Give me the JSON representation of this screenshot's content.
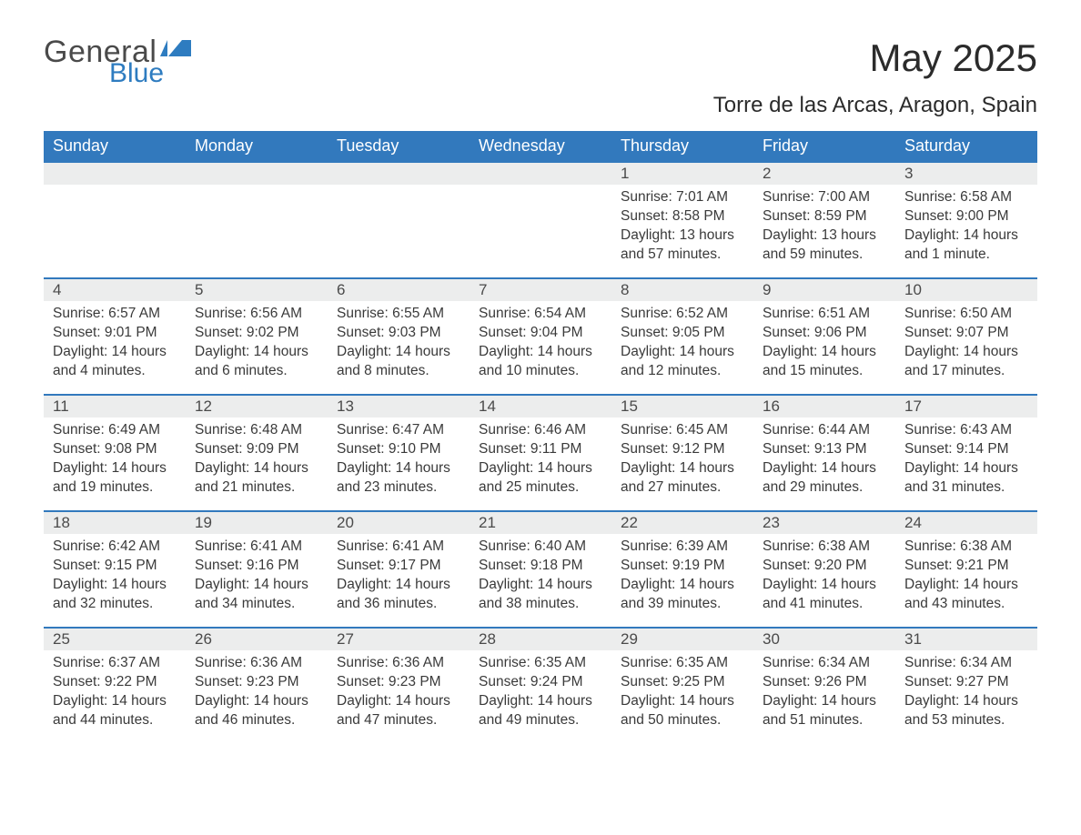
{
  "brand": {
    "general": "General",
    "blue": "Blue",
    "flag_color": "#2e7cc0"
  },
  "title": "May 2025",
  "location": "Torre de las Arcas, Aragon, Spain",
  "colors": {
    "header_bg": "#3279bd",
    "header_text": "#ffffff",
    "band_bg": "#eceded",
    "row_border": "#3279bd",
    "body_text": "#3a3a3a",
    "page_bg": "#ffffff"
  },
  "fonts": {
    "month_title_pt": 42,
    "location_pt": 24,
    "weekday_pt": 18,
    "daynum_pt": 17,
    "data_pt": 15.5
  },
  "weekdays": [
    "Sunday",
    "Monday",
    "Tuesday",
    "Wednesday",
    "Thursday",
    "Friday",
    "Saturday"
  ],
  "weeks": [
    [
      null,
      null,
      null,
      null,
      {
        "day": "1",
        "sunrise": "Sunrise: 7:01 AM",
        "sunset": "Sunset: 8:58 PM",
        "daylight": "Daylight: 13 hours and 57 minutes."
      },
      {
        "day": "2",
        "sunrise": "Sunrise: 7:00 AM",
        "sunset": "Sunset: 8:59 PM",
        "daylight": "Daylight: 13 hours and 59 minutes."
      },
      {
        "day": "3",
        "sunrise": "Sunrise: 6:58 AM",
        "sunset": "Sunset: 9:00 PM",
        "daylight": "Daylight: 14 hours and 1 minute."
      }
    ],
    [
      {
        "day": "4",
        "sunrise": "Sunrise: 6:57 AM",
        "sunset": "Sunset: 9:01 PM",
        "daylight": "Daylight: 14 hours and 4 minutes."
      },
      {
        "day": "5",
        "sunrise": "Sunrise: 6:56 AM",
        "sunset": "Sunset: 9:02 PM",
        "daylight": "Daylight: 14 hours and 6 minutes."
      },
      {
        "day": "6",
        "sunrise": "Sunrise: 6:55 AM",
        "sunset": "Sunset: 9:03 PM",
        "daylight": "Daylight: 14 hours and 8 minutes."
      },
      {
        "day": "7",
        "sunrise": "Sunrise: 6:54 AM",
        "sunset": "Sunset: 9:04 PM",
        "daylight": "Daylight: 14 hours and 10 minutes."
      },
      {
        "day": "8",
        "sunrise": "Sunrise: 6:52 AM",
        "sunset": "Sunset: 9:05 PM",
        "daylight": "Daylight: 14 hours and 12 minutes."
      },
      {
        "day": "9",
        "sunrise": "Sunrise: 6:51 AM",
        "sunset": "Sunset: 9:06 PM",
        "daylight": "Daylight: 14 hours and 15 minutes."
      },
      {
        "day": "10",
        "sunrise": "Sunrise: 6:50 AM",
        "sunset": "Sunset: 9:07 PM",
        "daylight": "Daylight: 14 hours and 17 minutes."
      }
    ],
    [
      {
        "day": "11",
        "sunrise": "Sunrise: 6:49 AM",
        "sunset": "Sunset: 9:08 PM",
        "daylight": "Daylight: 14 hours and 19 minutes."
      },
      {
        "day": "12",
        "sunrise": "Sunrise: 6:48 AM",
        "sunset": "Sunset: 9:09 PM",
        "daylight": "Daylight: 14 hours and 21 minutes."
      },
      {
        "day": "13",
        "sunrise": "Sunrise: 6:47 AM",
        "sunset": "Sunset: 9:10 PM",
        "daylight": "Daylight: 14 hours and 23 minutes."
      },
      {
        "day": "14",
        "sunrise": "Sunrise: 6:46 AM",
        "sunset": "Sunset: 9:11 PM",
        "daylight": "Daylight: 14 hours and 25 minutes."
      },
      {
        "day": "15",
        "sunrise": "Sunrise: 6:45 AM",
        "sunset": "Sunset: 9:12 PM",
        "daylight": "Daylight: 14 hours and 27 minutes."
      },
      {
        "day": "16",
        "sunrise": "Sunrise: 6:44 AM",
        "sunset": "Sunset: 9:13 PM",
        "daylight": "Daylight: 14 hours and 29 minutes."
      },
      {
        "day": "17",
        "sunrise": "Sunrise: 6:43 AM",
        "sunset": "Sunset: 9:14 PM",
        "daylight": "Daylight: 14 hours and 31 minutes."
      }
    ],
    [
      {
        "day": "18",
        "sunrise": "Sunrise: 6:42 AM",
        "sunset": "Sunset: 9:15 PM",
        "daylight": "Daylight: 14 hours and 32 minutes."
      },
      {
        "day": "19",
        "sunrise": "Sunrise: 6:41 AM",
        "sunset": "Sunset: 9:16 PM",
        "daylight": "Daylight: 14 hours and 34 minutes."
      },
      {
        "day": "20",
        "sunrise": "Sunrise: 6:41 AM",
        "sunset": "Sunset: 9:17 PM",
        "daylight": "Daylight: 14 hours and 36 minutes."
      },
      {
        "day": "21",
        "sunrise": "Sunrise: 6:40 AM",
        "sunset": "Sunset: 9:18 PM",
        "daylight": "Daylight: 14 hours and 38 minutes."
      },
      {
        "day": "22",
        "sunrise": "Sunrise: 6:39 AM",
        "sunset": "Sunset: 9:19 PM",
        "daylight": "Daylight: 14 hours and 39 minutes."
      },
      {
        "day": "23",
        "sunrise": "Sunrise: 6:38 AM",
        "sunset": "Sunset: 9:20 PM",
        "daylight": "Daylight: 14 hours and 41 minutes."
      },
      {
        "day": "24",
        "sunrise": "Sunrise: 6:38 AM",
        "sunset": "Sunset: 9:21 PM",
        "daylight": "Daylight: 14 hours and 43 minutes."
      }
    ],
    [
      {
        "day": "25",
        "sunrise": "Sunrise: 6:37 AM",
        "sunset": "Sunset: 9:22 PM",
        "daylight": "Daylight: 14 hours and 44 minutes."
      },
      {
        "day": "26",
        "sunrise": "Sunrise: 6:36 AM",
        "sunset": "Sunset: 9:23 PM",
        "daylight": "Daylight: 14 hours and 46 minutes."
      },
      {
        "day": "27",
        "sunrise": "Sunrise: 6:36 AM",
        "sunset": "Sunset: 9:23 PM",
        "daylight": "Daylight: 14 hours and 47 minutes."
      },
      {
        "day": "28",
        "sunrise": "Sunrise: 6:35 AM",
        "sunset": "Sunset: 9:24 PM",
        "daylight": "Daylight: 14 hours and 49 minutes."
      },
      {
        "day": "29",
        "sunrise": "Sunrise: 6:35 AM",
        "sunset": "Sunset: 9:25 PM",
        "daylight": "Daylight: 14 hours and 50 minutes."
      },
      {
        "day": "30",
        "sunrise": "Sunrise: 6:34 AM",
        "sunset": "Sunset: 9:26 PM",
        "daylight": "Daylight: 14 hours and 51 minutes."
      },
      {
        "day": "31",
        "sunrise": "Sunrise: 6:34 AM",
        "sunset": "Sunset: 9:27 PM",
        "daylight": "Daylight: 14 hours and 53 minutes."
      }
    ]
  ]
}
